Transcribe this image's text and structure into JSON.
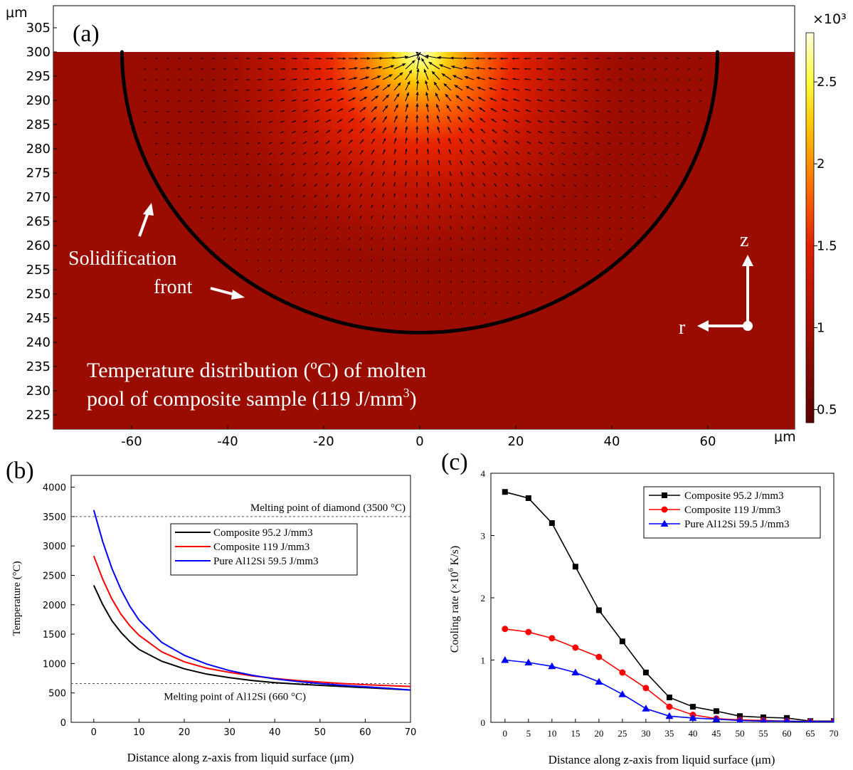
{
  "chart_data": [
    {
      "panel": "(a)",
      "type": "heatmap",
      "x_unit": "μm",
      "y_unit": "μm",
      "xlim": [
        -75,
        75
      ],
      "ylim": [
        221,
        309
      ],
      "xticks": [
        -60,
        -40,
        -20,
        0,
        20,
        40,
        60
      ],
      "yticks": [
        225,
        230,
        235,
        240,
        245,
        250,
        255,
        260,
        265,
        270,
        275,
        280,
        285,
        290,
        295,
        300,
        305
      ],
      "surface_y": 300,
      "pool_center_r": 0,
      "pool_half_width": 62,
      "pool_bottom_y": 242,
      "colorbar": {
        "multiplier": "×10³",
        "ticks": [
          0.5,
          1,
          1.5,
          2,
          2.5
        ],
        "min": 0.42,
        "max": 2.8,
        "colors": [
          "#5c0000",
          "#7e0a00",
          "#b00f00",
          "#e01f00",
          "#ff6a00",
          "#ffc000",
          "#ffff40",
          "#ffffe0"
        ]
      },
      "labels": {
        "front_line1": "Solidification",
        "front_line2": "front",
        "axis_z": "z",
        "axis_r": "r",
        "caption_line1": "Temperature distribution (ºC) of molten",
        "caption_line2_a": "pool of composite sample (119 J/mm",
        "caption_line2_sup": "3",
        "caption_line2_b": ")"
      }
    },
    {
      "panel": "(b)",
      "type": "line",
      "xlabel": "Distance along z-axis from liquid surface (μm)",
      "ylabel": "Temperature (°C)",
      "xlim": [
        -5,
        70
      ],
      "ylim": [
        0,
        4200
      ],
      "xticks": [
        0,
        10,
        20,
        30,
        40,
        50,
        60,
        70
      ],
      "yticks": [
        0,
        500,
        1000,
        1500,
        2000,
        2500,
        3000,
        3500,
        4000
      ],
      "x": [
        0,
        2,
        4,
        6,
        8,
        10,
        15,
        20,
        25,
        30,
        35,
        40,
        45,
        50,
        55,
        60,
        65,
        70
      ],
      "series": [
        {
          "name": "Composite 95.2 J/mm3",
          "color": "#000000",
          "values": [
            2330,
            2000,
            1730,
            1530,
            1370,
            1240,
            1040,
            910,
            820,
            760,
            710,
            675,
            650,
            630,
            610,
            590,
            570,
            550
          ]
        },
        {
          "name": "Composite 119 J/mm3",
          "color": "#ff0000",
          "values": [
            2830,
            2430,
            2100,
            1840,
            1640,
            1480,
            1200,
            1030,
            920,
            850,
            790,
            745,
            710,
            685,
            660,
            640,
            625,
            610
          ]
        },
        {
          "name": "Pure Al12Si 59.5 J/mm3",
          "color": "#0000ff",
          "values": [
            3610,
            3070,
            2620,
            2260,
            1970,
            1740,
            1360,
            1140,
            990,
            880,
            800,
            740,
            695,
            660,
            630,
            605,
            580,
            550
          ]
        }
      ],
      "reference_lines": [
        {
          "y": 3500,
          "label": "Melting point of diamond (3500 °C)"
        },
        {
          "y": 660,
          "label": "Melting point of Al12Si (660 °C)"
        }
      ],
      "legend": "upper-center"
    },
    {
      "panel": "(c)",
      "type": "line",
      "xlabel": "Distance along z-axis from liquid surface (μm)",
      "ylabel_a": "Cooling  rate (×10",
      "ylabel_sup": "6",
      "ylabel_b": " K/s)",
      "xlim": [
        -3,
        70
      ],
      "ylim": [
        0,
        4
      ],
      "xticks": [
        0,
        5,
        10,
        15,
        20,
        25,
        30,
        35,
        40,
        45,
        50,
        55,
        60,
        65,
        70
      ],
      "yticks": [
        0,
        1,
        2,
        3,
        4
      ],
      "x": [
        0,
        5,
        10,
        15,
        20,
        25,
        30,
        35,
        40,
        45,
        50,
        55,
        60,
        65,
        70
      ],
      "series": [
        {
          "name": "Composite 95.2 J/mm3",
          "color": "#000000",
          "marker": "square",
          "values": [
            3.7,
            3.6,
            3.2,
            2.5,
            1.8,
            1.3,
            0.8,
            0.4,
            0.25,
            0.18,
            0.1,
            0.08,
            0.07,
            0.02,
            0.02
          ]
        },
        {
          "name": "Composite 119 J/mm3",
          "color": "#ff0000",
          "marker": "circle",
          "values": [
            1.5,
            1.45,
            1.35,
            1.2,
            1.05,
            0.8,
            0.55,
            0.25,
            0.12,
            0.06,
            0.04,
            0.03,
            0.02,
            0.01,
            0.01
          ]
        },
        {
          "name": "Pure Al12Si 59.5 J/mm3",
          "color": "#0000ff",
          "marker": "triangle",
          "values": [
            1.0,
            0.96,
            0.9,
            0.8,
            0.65,
            0.45,
            0.22,
            0.1,
            0.07,
            0.05,
            0.03,
            0.02,
            0.02,
            0.01,
            0.01
          ]
        }
      ],
      "legend": "upper-right"
    }
  ]
}
